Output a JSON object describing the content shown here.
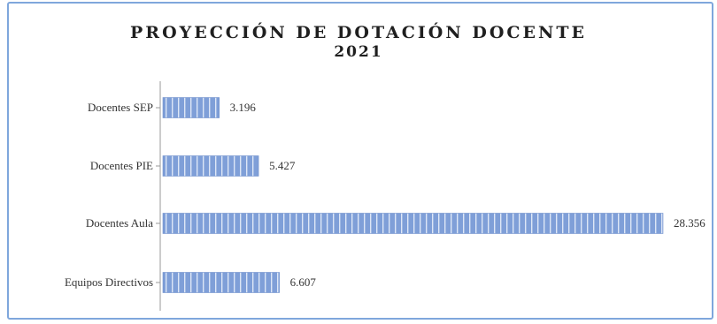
{
  "chart_data": {
    "type": "bar",
    "orientation": "horizontal",
    "title": [
      "PROYECCIÓN DE DOTACIÓN DOCENTE",
      "2021"
    ],
    "categories": [
      "Docentes SEP",
      "Docentes PIE",
      "Docentes Aula",
      "Equipos Directivos"
    ],
    "values": [
      3196,
      5427,
      28356,
      6607
    ],
    "value_labels": [
      "3.196",
      "5.427",
      "28.356",
      "6.607"
    ],
    "xlim": [
      0,
      28356
    ],
    "grid": false,
    "legend": "none",
    "bar_color": "#7f9fd8"
  }
}
